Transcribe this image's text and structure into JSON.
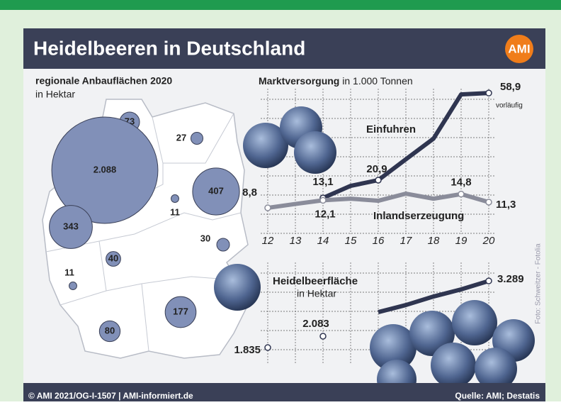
{
  "header": {
    "title": "Heidelbeeren in Deutschland",
    "logo": "AMI"
  },
  "footer": {
    "left": "© AMI 2021/OG-I-1507 | AMI-informiert.de",
    "right": "Quelle: AMI; Destatis",
    "credit": "Foto: Schweitzer - Fotolia"
  },
  "chart_data": [
    {
      "type": "bubble",
      "title": "regionale Anbauflächen 2020",
      "subtitle": "in Hektar",
      "color": "#8190b8",
      "values": [
        73,
        27,
        2088,
        407,
        11,
        343,
        30,
        40,
        11,
        177,
        80
      ],
      "value_labels": [
        "73",
        "27",
        "2.088",
        "407",
        "11",
        "343",
        "30",
        "40",
        "11",
        "177",
        "80"
      ]
    },
    {
      "type": "line",
      "title": "Marktversorgung",
      "subtitle": "in 1.000 Tonnen",
      "annotation": "vorläufig",
      "categories": [
        "12",
        "13",
        "14",
        "15",
        "16",
        "17",
        "18",
        "19",
        "20"
      ],
      "ylim": [
        0,
        60
      ],
      "grid": true,
      "series": [
        {
          "name": "Einfuhren",
          "color": "#2f3550",
          "values": [
            null,
            null,
            13.1,
            18.4,
            20.9,
            30,
            39,
            58.3,
            58.9
          ],
          "value_labels": [
            null,
            null,
            "13,1",
            null,
            "20,9",
            null,
            null,
            null,
            "58,9"
          ]
        },
        {
          "name": "Inlandserzeugung",
          "color": "#8a8c9a",
          "values": [
            8.8,
            10.5,
            12.1,
            12.8,
            11.9,
            15,
            12.8,
            14.8,
            11.3
          ],
          "value_labels": [
            "8,8",
            null,
            "12,1",
            null,
            null,
            null,
            null,
            "14,8",
            "11,3"
          ]
        }
      ]
    },
    {
      "type": "line",
      "title": "Heidelbeerfläche",
      "subtitle": "in Hektar",
      "ylim": [
        1500,
        3400
      ],
      "grid": true,
      "series": [
        {
          "color": "#2f3550",
          "values": [
            1835,
            null,
            2083,
            null,
            2608,
            2763,
            2949,
            3104,
            3289
          ],
          "value_labels": [
            "1.835",
            null,
            "2.083",
            null,
            null,
            null,
            null,
            null,
            "3.289"
          ]
        }
      ]
    }
  ]
}
